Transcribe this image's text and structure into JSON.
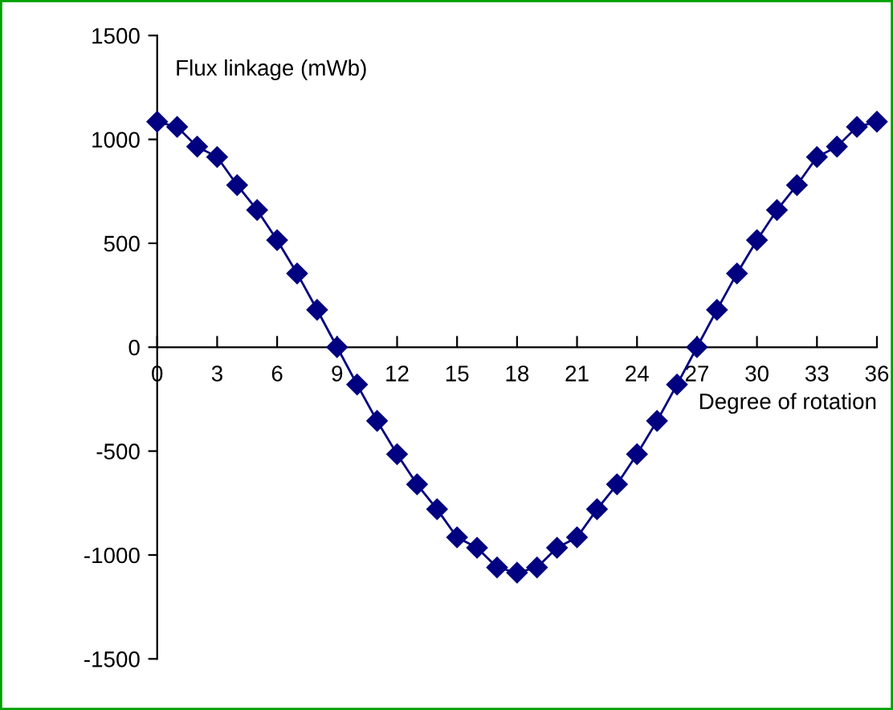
{
  "chart_data": {
    "type": "line",
    "xlabel": "Degree of rotation",
    "ylabel": "Flux linkage (mWb)",
    "x": [
      0,
      1,
      2,
      3,
      4,
      5,
      6,
      7,
      8,
      9,
      10,
      11,
      12,
      13,
      14,
      15,
      16,
      17,
      18,
      19,
      20,
      21,
      22,
      23,
      24,
      25,
      26,
      27,
      28,
      29,
      30,
      31,
      32,
      33,
      34,
      35,
      36
    ],
    "series": [
      {
        "color": "#000080",
        "values": [
          1085,
          1060,
          965,
          915,
          780,
          660,
          515,
          355,
          180,
          0,
          -180,
          -355,
          -515,
          -660,
          -780,
          -915,
          -965,
          -1060,
          -1085,
          -1060,
          -965,
          -915,
          -780,
          -660,
          -515,
          -355,
          -180,
          0,
          180,
          355,
          515,
          660,
          780,
          915,
          965,
          1060,
          1085
        ]
      }
    ],
    "xlim": [
      0,
      36
    ],
    "xticks": [
      0,
      3,
      6,
      9,
      12,
      15,
      18,
      21,
      24,
      27,
      30,
      33,
      36
    ],
    "ylim": [
      -1500,
      1500
    ],
    "yticks": [
      -1500,
      -1000,
      -500,
      0,
      500,
      1000,
      1500
    ],
    "marker": "diamond",
    "line_style": "solid",
    "grid": false,
    "legend": false
  }
}
